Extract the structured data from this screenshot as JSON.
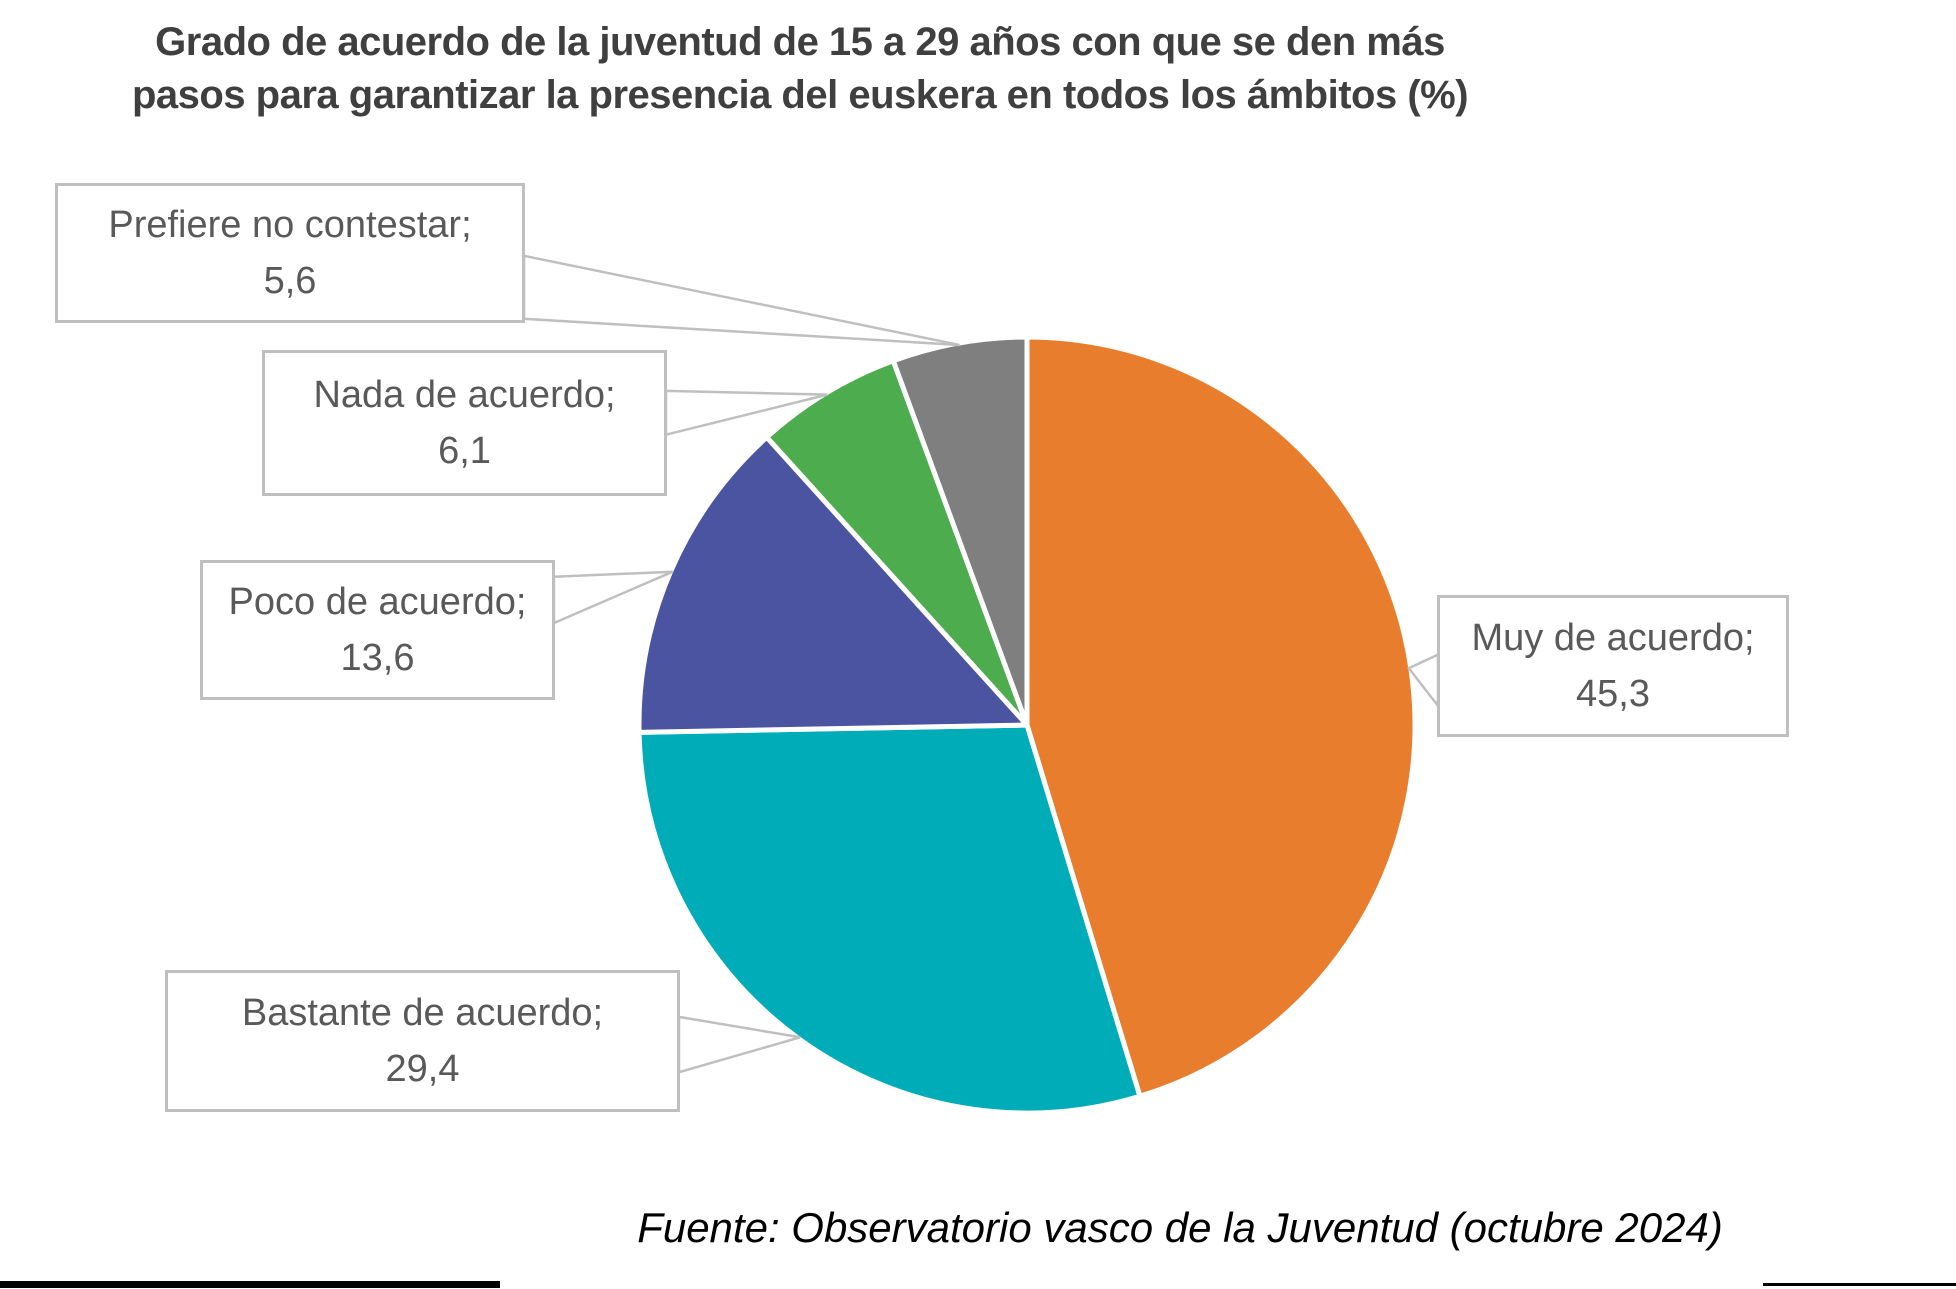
{
  "title": {
    "line1": "Grado de acuerdo de la juventud de 15 a 29 años con que se den más",
    "line2": "pasos para garantizar la presencia del euskera en todos los ámbitos (%)"
  },
  "source": "Fuente: Observatorio vasco de la Juventud (octubre 2024)",
  "colors": {
    "title_text": "#3F3F3F",
    "label_text": "#595959",
    "callout_border": "#BFBFBF",
    "slice_separator": "#FFFFFF",
    "page_edge": "#000000"
  },
  "chart_data": {
    "type": "pie",
    "title": "Grado de acuerdo de la juventud de 15 a 29 años con que se den más pasos para garantizar la presencia del euskera en todos los ámbitos (%)",
    "unit": "%",
    "decimal_separator": ",",
    "start_angle_deg": 0,
    "direction": "clockwise",
    "legend": "callout-labels",
    "slices": [
      {
        "label": "Muy de acuerdo",
        "value": 45.3,
        "display_value": "45,3",
        "color": "#E87D2D",
        "callout_line1": "Muy de acuerdo;",
        "callout_line2": "45,3"
      },
      {
        "label": "Bastante de acuerdo",
        "value": 29.4,
        "display_value": "29,4",
        "color": "#00ACB8",
        "callout_line1": "Bastante de acuerdo;",
        "callout_line2": "29,4"
      },
      {
        "label": "Poco de acuerdo",
        "value": 13.6,
        "display_value": "13,6",
        "color": "#4A54A0",
        "callout_line1": "Poco de acuerdo;",
        "callout_line2": "13,6"
      },
      {
        "label": "Nada de acuerdo",
        "value": 6.1,
        "display_value": "6,1",
        "color": "#4DAC4E",
        "callout_line1": "Nada de acuerdo;",
        "callout_line2": "6,1"
      },
      {
        "label": "Prefiere no contestar",
        "value": 5.6,
        "display_value": "5,6",
        "color": "#7F7F7F",
        "callout_line1": "Prefiere no contestar;",
        "callout_line2": "5,6"
      }
    ]
  }
}
